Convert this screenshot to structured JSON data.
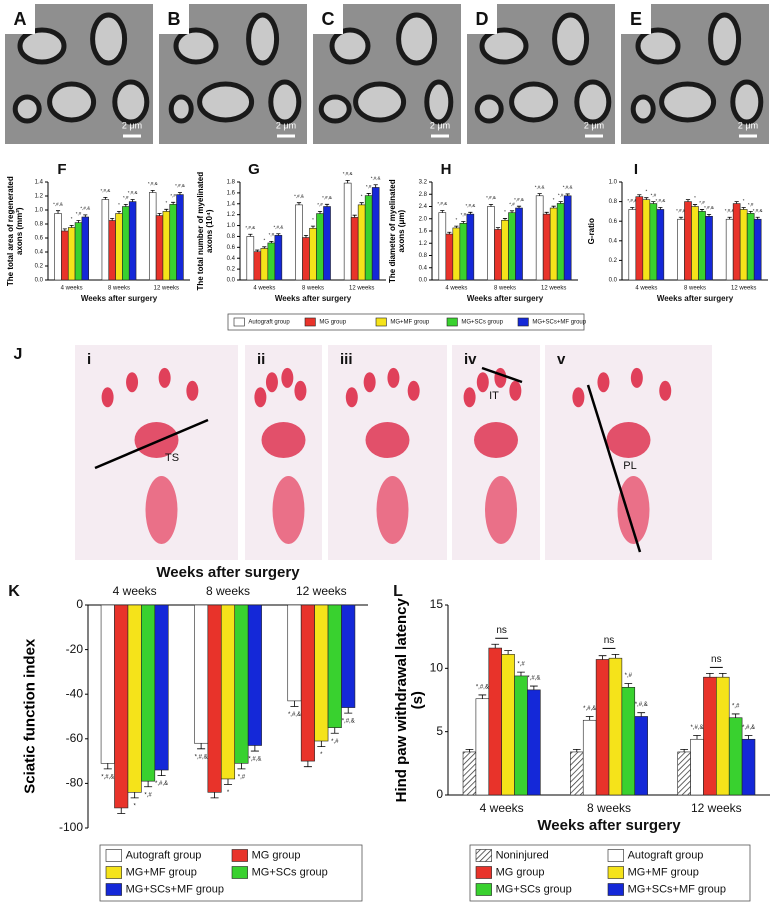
{
  "figure": {
    "micrograph_labels": [
      "A",
      "B",
      "C",
      "D",
      "E"
    ],
    "scale_bar": "2 μm",
    "footprint_panel": "J",
    "footprint_labels": [
      "i",
      "ii",
      "iii",
      "iv",
      "v"
    ],
    "measure_labels": [
      "TS",
      "IT",
      "PL"
    ]
  },
  "chart_data": [
    {
      "type": "bar",
      "panel": "F",
      "ylabel": "The total area of regenerated axons (mm²)",
      "xlabel": "Weeks after surgery",
      "categories": [
        "4 weeks",
        "8 weeks",
        "12 weeks"
      ],
      "ylim": [
        0,
        1.4
      ],
      "yticks": [
        {
          "value": 0,
          "label": "0.0"
        },
        0.2,
        0.4,
        0.6,
        0.8,
        {
          "value": 1,
          "label": "1.0"
        },
        1.2,
        1.4
      ],
      "legend": true,
      "series": [
        {
          "name": "Autograft group",
          "color": "#ffffff",
          "values": [
            0.95,
            1.15,
            1.25
          ],
          "errors": [
            0.04,
            0.03,
            0.03
          ],
          "annotation": "*,#,&"
        },
        {
          "name": "MG group",
          "color": "#e8332a",
          "values": [
            0.7,
            0.85,
            0.92
          ],
          "errors": [
            0.03,
            0.03,
            0.03
          ]
        },
        {
          "name": "MG+MF group",
          "color": "#f5e31a",
          "values": [
            0.75,
            0.95,
            0.98
          ],
          "errors": [
            0.03,
            0.03,
            0.03
          ],
          "annotation": "*"
        },
        {
          "name": "MG+SCs group",
          "color": "#39d12f",
          "values": [
            0.82,
            1.05,
            1.08
          ],
          "errors": [
            0.03,
            0.03,
            0.03
          ],
          "annotation": "*,#"
        },
        {
          "name": "MG+SCs+MF group",
          "color": "#1428d8",
          "values": [
            0.9,
            1.12,
            1.22
          ],
          "errors": [
            0.03,
            0.03,
            0.03
          ],
          "annotation": "*,#,&"
        }
      ]
    },
    {
      "type": "bar",
      "panel": "G",
      "ylabel": "The total number of myelinated axons (10⁴)",
      "xlabel": "Weeks after surgery",
      "categories": [
        "4 weeks",
        "8 weeks",
        "12 weeks"
      ],
      "ylim": [
        0,
        1.8
      ],
      "yticks": [
        {
          "value": 0,
          "label": "0.0"
        },
        0.2,
        0.4,
        0.6,
        0.8,
        {
          "value": 1,
          "label": "1.0"
        },
        1.2,
        1.4,
        1.6,
        1.8
      ],
      "series": [
        {
          "color": "#ffffff",
          "values": [
            0.8,
            1.38,
            1.78
          ],
          "errors": [
            0.04,
            0.04,
            0.05
          ],
          "annotation": "*,#,&"
        },
        {
          "color": "#e8332a",
          "values": [
            0.52,
            0.78,
            1.15
          ],
          "errors": [
            0.03,
            0.04,
            0.04
          ]
        },
        {
          "color": "#f5e31a",
          "values": [
            0.58,
            0.95,
            1.38
          ],
          "errors": [
            0.03,
            0.04,
            0.04
          ],
          "annotation": "*"
        },
        {
          "color": "#39d12f",
          "values": [
            0.68,
            1.22,
            1.55
          ],
          "errors": [
            0.03,
            0.04,
            0.04
          ],
          "annotation": "*,#"
        },
        {
          "color": "#1428d8",
          "values": [
            0.82,
            1.35,
            1.7
          ],
          "errors": [
            0.03,
            0.04,
            0.05
          ],
          "annotation": "*,#,&"
        }
      ]
    },
    {
      "type": "bar",
      "panel": "H",
      "ylabel": "The diameter of myelinated axons (μm)",
      "xlabel": "Weeks after surgery",
      "categories": [
        "4 weeks",
        "8 weeks",
        "12 weeks"
      ],
      "ylim": [
        0,
        3.2
      ],
      "yticks": [
        {
          "value": 0,
          "label": "0.0"
        },
        0.4,
        0.8,
        1.2,
        1.6,
        {
          "value": 2,
          "label": "2.0"
        },
        2.4,
        2.8,
        3.2
      ],
      "series": [
        {
          "color": "#ffffff",
          "values": [
            2.2,
            2.4,
            2.75
          ],
          "errors": [
            0.07,
            0.07,
            0.07
          ],
          "annotation": "*,#,&"
        },
        {
          "color": "#e8332a",
          "values": [
            1.5,
            1.65,
            2.15
          ],
          "errors": [
            0.06,
            0.06,
            0.06
          ]
        },
        {
          "color": "#f5e31a",
          "values": [
            1.7,
            1.95,
            2.35
          ],
          "errors": [
            0.06,
            0.06,
            0.06
          ],
          "annotation": "*"
        },
        {
          "color": "#39d12f",
          "values": [
            1.85,
            2.2,
            2.5
          ],
          "errors": [
            0.06,
            0.06,
            0.06
          ],
          "annotation": "*,#"
        },
        {
          "color": "#1428d8",
          "values": [
            2.15,
            2.35,
            2.75
          ],
          "errors": [
            0.06,
            0.06,
            0.06
          ],
          "annotation": "*,#,&"
        }
      ]
    },
    {
      "type": "bar",
      "panel": "I",
      "ylabel": "G-ratio",
      "xlabel": "Weeks after surgery",
      "categories": [
        "4 weeks",
        "8 weeks",
        "12 weeks"
      ],
      "ylim": [
        0,
        1
      ],
      "yticks": [
        {
          "value": 0,
          "label": "0.0"
        },
        0.2,
        0.4,
        0.6,
        0.8,
        {
          "value": 1,
          "label": "1.0"
        }
      ],
      "series": [
        {
          "color": "#ffffff",
          "values": [
            0.72,
            0.62,
            0.62
          ],
          "errors": [
            0.02,
            0.02,
            0.02
          ],
          "annotation": "*,#,&"
        },
        {
          "color": "#e8332a",
          "values": [
            0.85,
            0.8,
            0.78
          ],
          "errors": [
            0.02,
            0.02,
            0.02
          ]
        },
        {
          "color": "#f5e31a",
          "values": [
            0.82,
            0.75,
            0.72
          ],
          "errors": [
            0.02,
            0.02,
            0.02
          ],
          "annotation": "*"
        },
        {
          "color": "#39d12f",
          "values": [
            0.78,
            0.7,
            0.68
          ],
          "errors": [
            0.02,
            0.02,
            0.02
          ],
          "annotation": "*,#"
        },
        {
          "color": "#1428d8",
          "values": [
            0.72,
            0.65,
            0.62
          ],
          "errors": [
            0.02,
            0.02,
            0.02
          ],
          "annotation": "*,#,&"
        }
      ]
    },
    {
      "type": "bar",
      "panel": "K",
      "title": "Weeks after surgery",
      "ylabel": "Sciatic function index",
      "categories": [
        "4 weeks",
        "8 weeks",
        "12 weeks"
      ],
      "ylim": [
        -100,
        0
      ],
      "yticks": [
        0,
        -20,
        -40,
        -60,
        -80,
        -100
      ],
      "legend": true,
      "series": [
        {
          "name": "Autograft group",
          "color": "#ffffff",
          "values": [
            -71,
            -62,
            -43
          ],
          "errors": [
            2.5,
            2.5,
            2.5
          ],
          "annotation": "*,#,&"
        },
        {
          "name": "MG group",
          "color": "#e8332a",
          "values": [
            -91,
            -84,
            -70
          ],
          "errors": [
            2.5,
            2.5,
            2.5
          ]
        },
        {
          "name": "MG+MF group",
          "color": "#f5e31a",
          "values": [
            -84,
            -78,
            -61
          ],
          "errors": [
            2.5,
            2.5,
            2.5
          ],
          "annotation": "*"
        },
        {
          "name": "MG+SCs group",
          "color": "#39d12f",
          "values": [
            -79,
            -71,
            -55
          ],
          "errors": [
            2.5,
            2.5,
            2.5
          ],
          "annotation": "*,#"
        },
        {
          "name": "MG+SCs+MF group",
          "color": "#1428d8",
          "values": [
            -74,
            -63,
            -46
          ],
          "errors": [
            2.5,
            2.5,
            2.5
          ],
          "annotation": "*,#,&"
        }
      ]
    },
    {
      "type": "bar",
      "panel": "L",
      "ylabel": "Hind paw withdrawal latency (s)",
      "xlabel": "Weeks after surgery",
      "categories": [
        "4 weeks",
        "8 weeks",
        "12 weeks"
      ],
      "ylim": [
        0,
        15
      ],
      "yticks": [
        0,
        5,
        10,
        15
      ],
      "legend": true,
      "bracket_label": "ns",
      "series": [
        {
          "name": "Noninjured",
          "color": "#ffffff",
          "hatch": true,
          "values": [
            3.4,
            3.4,
            3.4
          ],
          "errors": [
            0.2,
            0.2,
            0.2
          ]
        },
        {
          "name": "Autograft group",
          "color": "#ffffff",
          "values": [
            7.6,
            5.9,
            4.4
          ],
          "errors": [
            0.3,
            0.3,
            0.3
          ],
          "annotation": "*,#,&"
        },
        {
          "name": "MG group",
          "color": "#e8332a",
          "values": [
            11.6,
            10.7,
            9.3
          ],
          "errors": [
            0.3,
            0.3,
            0.3
          ]
        },
        {
          "name": "MG+MF group",
          "color": "#f5e31a",
          "values": [
            11.1,
            10.8,
            9.3
          ],
          "errors": [
            0.3,
            0.3,
            0.3
          ]
        },
        {
          "name": "MG+SCs group",
          "color": "#39d12f",
          "values": [
            9.4,
            8.5,
            6.1
          ],
          "errors": [
            0.3,
            0.3,
            0.3
          ],
          "annotation": "*,#"
        },
        {
          "name": "MG+SCs+MF group",
          "color": "#1428d8",
          "values": [
            8.3,
            6.2,
            4.4
          ],
          "errors": [
            0.3,
            0.3,
            0.3
          ],
          "annotation": "*,#,&"
        }
      ]
    }
  ]
}
